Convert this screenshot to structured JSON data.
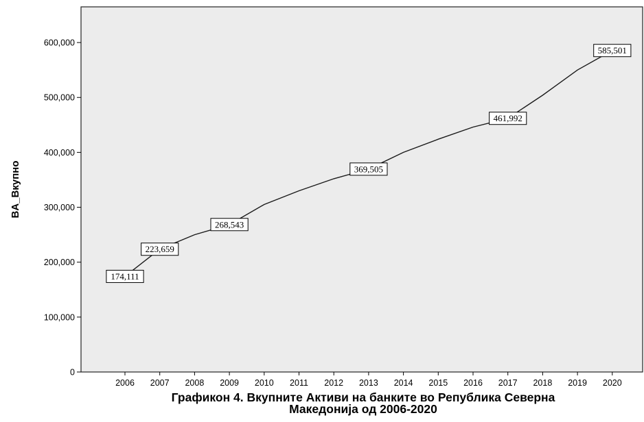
{
  "chart_data": {
    "type": "line",
    "title": "",
    "caption_line1": "Графикон 4. Вкупните Активи на банките во Република Северна",
    "caption_line2": "Македонија од 2006-2020",
    "xlabel": "",
    "ylabel": "BA_Вкупно",
    "x": [
      "2006",
      "2007",
      "2008",
      "2009",
      "2010",
      "2011",
      "2012",
      "2013",
      "2014",
      "2015",
      "2016",
      "2017",
      "2018",
      "2019",
      "2020"
    ],
    "y": [
      174111,
      223659,
      250000,
      268543,
      305000,
      330000,
      352000,
      369505,
      400000,
      424000,
      446000,
      461992,
      504000,
      550000,
      585501
    ],
    "data_labels": [
      {
        "x": "2006",
        "text": "174,111"
      },
      {
        "x": "2007",
        "text": "223,659"
      },
      {
        "x": "2009",
        "text": "268,543"
      },
      {
        "x": "2013",
        "text": "369,505"
      },
      {
        "x": "2017",
        "text": "461,992"
      },
      {
        "x": "2020",
        "text": "585,501"
      }
    ],
    "yticks": [
      0,
      100000,
      200000,
      300000,
      400000,
      500000,
      600000
    ],
    "ytick_labels": [
      "0",
      "100,000",
      "200,000",
      "300,000",
      "400,000",
      "500,000",
      "600,000"
    ],
    "ylim": [
      0,
      665000
    ],
    "grid": false,
    "colors": {
      "plot_background": "#ececec",
      "line": "#1a1a1a"
    }
  }
}
